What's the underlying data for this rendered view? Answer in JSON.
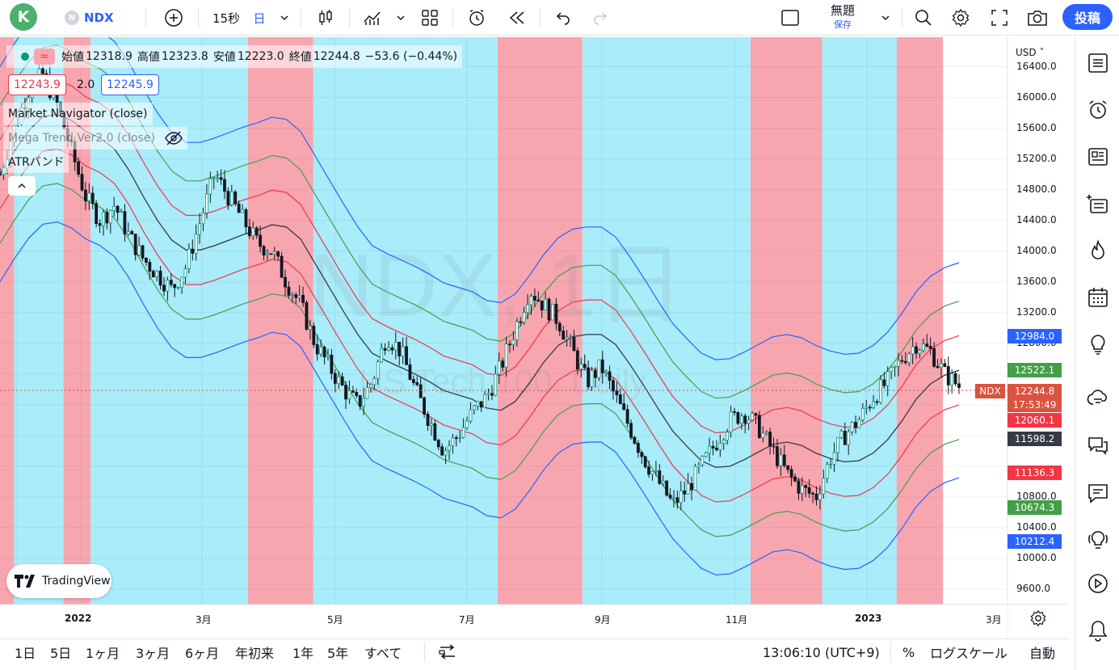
{
  "topbar": {
    "avatar_letter": "K",
    "symbol_badge": "N",
    "symbol": "NDX",
    "interval": "15秒",
    "chart_interval": "日",
    "layout_title": "無題",
    "layout_status": "保存",
    "publish_label": "投稿"
  },
  "legend": {
    "open_label": "始値",
    "open": "12318.9",
    "high_label": "高値",
    "high": "12323.8",
    "low_label": "安値",
    "low": "12223.0",
    "close_label": "終値",
    "close": "12244.8",
    "change": "−53.6 (−0.44%)",
    "bid": "12243.9",
    "spread": "2.0",
    "ask": "12245.9",
    "indicators": [
      {
        "name": "Market Navigator (close)"
      },
      {
        "name": "Mega Trend Ver2.0 (close)"
      },
      {
        "name": "ATRバンド"
      }
    ]
  },
  "watermark": {
    "big": "NDX, 1日",
    "small": "US Tech 100, Daily"
  },
  "price_axis": {
    "currency": "USD",
    "ticks": [
      "16400.0",
      "16000.0",
      "15600.0",
      "15200.0",
      "14800.0",
      "14400.0",
      "14000.0",
      "13600.0",
      "13200.0",
      "12800.0",
      "12400.0",
      "10800.0",
      "10400.0",
      "10000.0",
      "9600.0"
    ],
    "tags": [
      {
        "label": "12984.0",
        "color": "#2962ff"
      },
      {
        "label": "12522.1",
        "color": "#43a047"
      },
      {
        "label": "12244.8",
        "color": "#d9533f"
      },
      {
        "label": "17:53:49",
        "color": "#d9533f"
      },
      {
        "label": "12060.1",
        "color": "#f23645"
      },
      {
        "label": "11598.2",
        "color": "#363a45"
      },
      {
        "label": "11136.3",
        "color": "#f23645"
      },
      {
        "label": "10674.3",
        "color": "#43a047"
      },
      {
        "label": "10212.4",
        "color": "#2962ff"
      }
    ],
    "symbol_tag": "NDX"
  },
  "time_axis": {
    "ticks": [
      "2022",
      "3月",
      "5月",
      "7月",
      "9月",
      "11月",
      "2023",
      "3月"
    ]
  },
  "bottombar": {
    "ranges": [
      "1日",
      "5日",
      "1ヶ月",
      "3ヶ月",
      "6ヶ月",
      "年初来",
      "1年",
      "5年",
      "すべて"
    ],
    "time": "13:06:10 (UTC+9)",
    "percent": "%",
    "log": "ログスケール",
    "auto": "自動"
  },
  "branding": {
    "logo_text": "TradingView"
  },
  "colors": {
    "red_zone": "#f7a6b0",
    "cyan_zone": "#a9ecfa",
    "accent": "#2962ff"
  },
  "chart_data": {
    "type": "line",
    "ylim": [
      9400,
      16700
    ],
    "bands": [
      {
        "start": 0,
        "end": 0.014,
        "color": "red"
      },
      {
        "start": 0.014,
        "end": 0.063,
        "color": "cyan"
      },
      {
        "start": 0.063,
        "end": 0.09,
        "color": "red"
      },
      {
        "start": 0.09,
        "end": 0.246,
        "color": "cyan"
      },
      {
        "start": 0.246,
        "end": 0.311,
        "color": "red"
      },
      {
        "start": 0.311,
        "end": 0.494,
        "color": "cyan"
      },
      {
        "start": 0.494,
        "end": 0.578,
        "color": "red"
      },
      {
        "start": 0.578,
        "end": 0.745,
        "color": "cyan"
      },
      {
        "start": 0.745,
        "end": 0.816,
        "color": "red"
      },
      {
        "start": 0.816,
        "end": 0.89,
        "color": "cyan"
      },
      {
        "start": 0.89,
        "end": 0.936,
        "color": "red"
      }
    ],
    "price_path": [
      15000,
      15600,
      16100,
      16300,
      15900,
      15300,
      14700,
      14400,
      14600,
      14200,
      13900,
      13700,
      13500,
      13800,
      14400,
      15000,
      14700,
      14400,
      14100,
      14000,
      13600,
      13300,
      12800,
      12500,
      12200,
      12000,
      12300,
      12900,
      12700,
      12200,
      11800,
      11400,
      11600,
      11900,
      12100,
      12500,
      13000,
      13500,
      13300,
      13100,
      12700,
      12300,
      12500,
      12100,
      11700,
      11300,
      11000,
      10700,
      10900,
      11200,
      11500,
      11800,
      11900,
      11700,
      11400,
      11100,
      10900,
      10800,
      11300,
      11600,
      11800,
      12100,
      12300,
      12600,
      12800,
      12700,
      12400,
      12244.8
    ],
    "band_series": [
      {
        "name": "outer_upper",
        "color": "#2962ff",
        "offset": 1400
      },
      {
        "name": "inner_upper",
        "color": "#43a047",
        "offset": 900
      },
      {
        "name": "red_upper",
        "color": "#f23645",
        "offset": 450
      },
      {
        "name": "red_lower",
        "color": "#f23645",
        "offset": -450
      },
      {
        "name": "inner_lower",
        "color": "#43a047",
        "offset": -900
      },
      {
        "name": "outer_lower",
        "color": "#2962ff",
        "offset": -1400
      }
    ]
  }
}
